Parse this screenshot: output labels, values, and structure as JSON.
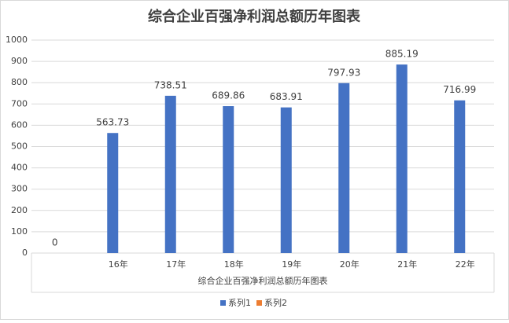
{
  "chart_data": {
    "type": "bar",
    "title": "综合企业百强净利润总额历年图表",
    "x_label": "综合企业百强净利润总额历年图表",
    "categories": [
      null,
      "16年",
      "17年",
      "18年",
      "19年",
      "20年",
      "21年",
      "22年"
    ],
    "series": [
      {
        "name": "系列1",
        "color": "#4472c4",
        "values": [
          0,
          563.73,
          738.51,
          689.86,
          683.91,
          797.93,
          885.19,
          716.99
        ]
      },
      {
        "name": "系列2",
        "color": "#ed7d31",
        "values": [
          null,
          null,
          null,
          null,
          null,
          null,
          null,
          null
        ]
      }
    ],
    "ylim": [
      0,
      1000
    ],
    "yticks": [
      0,
      100,
      200,
      300,
      400,
      500,
      600,
      700,
      800,
      900,
      1000
    ],
    "grid": true,
    "legend": "bottom"
  }
}
